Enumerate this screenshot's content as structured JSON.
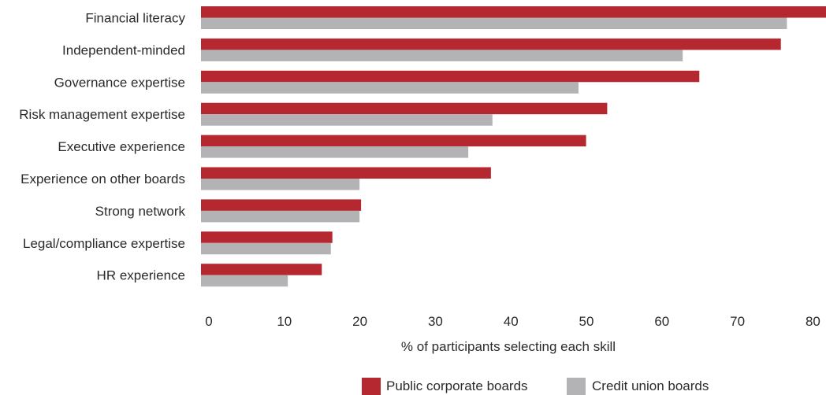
{
  "chart_data": {
    "type": "bar",
    "orientation": "horizontal",
    "categories": [
      "Financial literacy",
      "Independent-minded",
      "Governance expertise",
      "Risk management expertise",
      "Executive experience",
      "Experience on other boards",
      "Strong network",
      "Legal/compliance expertise",
      "HR experience"
    ],
    "series": [
      {
        "name": "Public corporate boards",
        "color": "#b5282f",
        "values": [
          82.8,
          76.8,
          66,
          53.8,
          51,
          38.4,
          21.2,
          17.4,
          16
        ]
      },
      {
        "name": "Credit union boards",
        "color": "#b3b3b6",
        "values": [
          77.6,
          63.8,
          50,
          38.6,
          35.4,
          21,
          21,
          17.2,
          11.5
        ]
      }
    ],
    "xlabel": "% of participants selecting each skill",
    "ylabel": "",
    "xlim": [
      0,
      84
    ],
    "xticks": [
      "0",
      "10",
      "20",
      "30",
      "40",
      "50",
      "60",
      "70",
      "80"
    ],
    "grid": false,
    "legend_position": "bottom-right"
  }
}
